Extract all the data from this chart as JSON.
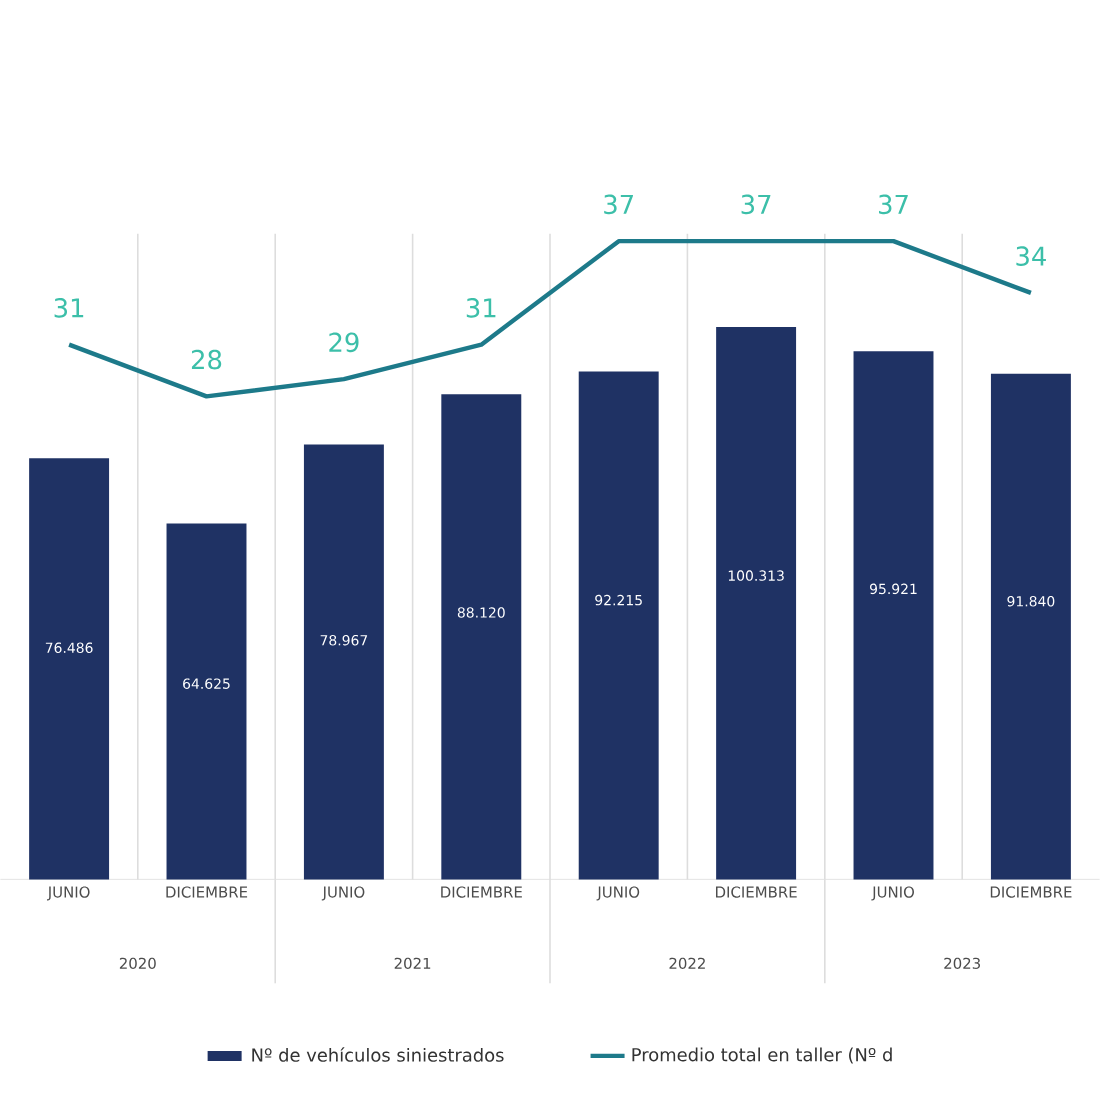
{
  "chart_data": {
    "type": "bar",
    "categories": [
      "JUNIO",
      "DICIEMBRE",
      "JUNIO",
      "DICIEMBRE",
      "JUNIO",
      "DICIEMBRE",
      "JUNIO",
      "DICIEMBRE"
    ],
    "series": [
      {
        "name": "Nº de vehículos siniestrados",
        "color": "#1f3264",
        "values": [
          76486,
          64625,
          78967,
          88120,
          92215,
          100313,
          95921,
          91840
        ],
        "value_labels": [
          "76.486",
          "64.625",
          "78.967",
          "88.120",
          "92.215",
          "100.313",
          "95.921",
          "91.840"
        ]
      },
      {
        "name": "Promedio total en taller (Nº d",
        "type": "line",
        "axis": "y2",
        "color": "#1d7a8a",
        "values": [
          31,
          28,
          29,
          31,
          37,
          37,
          37,
          34
        ],
        "value_labels": [
          "31",
          "28",
          "29",
          "31",
          "37",
          "37",
          "37",
          "34"
        ]
      }
    ],
    "annotations": [
      "2020",
      "2021",
      "2022",
      "2023"
    ],
    "grid": "x",
    "legend": "bottom"
  }
}
